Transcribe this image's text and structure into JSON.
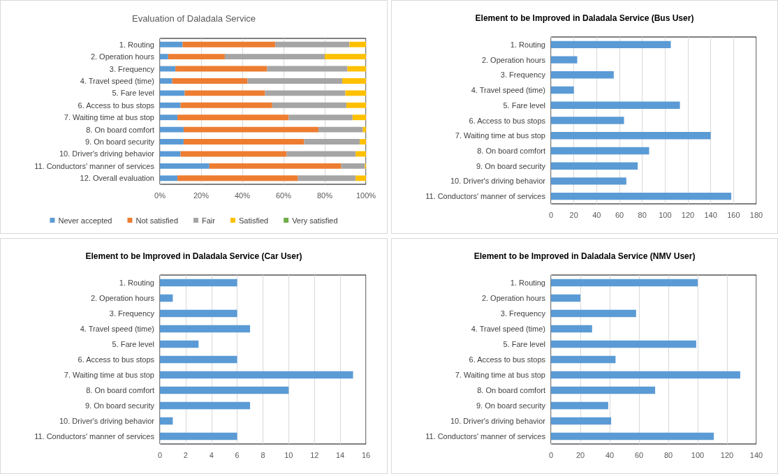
{
  "chart_data": [
    {
      "type": "bar",
      "title": "Evaluation of Daladala Service",
      "orientation": "horizontal",
      "stacked": true,
      "legend": "bottom",
      "grid": "x",
      "categories": [
        "1. Routing",
        "2. Operation hours",
        "3. Frequency",
        "4. Travel speed (time)",
        "5. Fare level",
        "6. Access to bus stops",
        "7. Waiting time at bus stop",
        "8. On board comfort",
        "9. On board security",
        "10. Driver's driving behavior",
        "11. Conductors' manner of services",
        "12. Overall evaluation"
      ],
      "series": [
        {
          "name": "Never accepted",
          "color": "#5b9bd5",
          "values": [
            11,
            4,
            7.5,
            6,
            12,
            10,
            8.5,
            11.5,
            11.5,
            10,
            24,
            8.5
          ]
        },
        {
          "name": "Not satisfied",
          "color": "#ed7d31",
          "values": [
            45,
            27.5,
            44.5,
            36.5,
            39,
            44.5,
            54,
            65.5,
            58.5,
            51.5,
            64,
            58.5
          ]
        },
        {
          "name": "Fair",
          "color": "#a5a5a5",
          "values": [
            36,
            48.5,
            39,
            46,
            39,
            36,
            31,
            21.5,
            27,
            33.5,
            11.5,
            28
          ]
        },
        {
          "name": "Satisfied",
          "color": "#ffc000",
          "values": [
            8,
            20,
            9,
            11.5,
            10,
            9.5,
            6.5,
            1.5,
            3,
            5,
            0.5,
            5
          ]
        },
        {
          "name": "Very satisfied",
          "color": "#70ad47",
          "values": [
            0,
            0,
            0,
            0,
            0,
            0,
            0,
            0,
            0,
            0,
            0,
            0
          ]
        }
      ],
      "xlim": [
        0,
        100
      ],
      "xticks": [
        {
          "value": 0,
          "label": "0%"
        },
        {
          "value": 20,
          "label": "20%"
        },
        {
          "value": 40,
          "label": "40%"
        },
        {
          "value": 60,
          "label": "60%"
        },
        {
          "value": 80,
          "label": "80%"
        },
        {
          "value": 100,
          "label": "100%"
        }
      ]
    },
    {
      "type": "bar",
      "title": "Element to be Improved in Daladala Service (Bus User)",
      "orientation": "horizontal",
      "grid": "x",
      "categories": [
        "1. Routing",
        "2. Operation hours",
        "3. Frequency",
        "4. Travel speed (time)",
        "5. Fare level",
        "6. Access to bus stops",
        "7. Waiting time at bus stop",
        "8. On board comfort",
        "9. On board security",
        "10. Driver's driving behavior",
        "11. Conductors' manner of services"
      ],
      "values": [
        105,
        23,
        55,
        20,
        113,
        64,
        140,
        86,
        76,
        66,
        158
      ],
      "color": "#5b9bd5",
      "xlim": [
        0,
        180
      ],
      "xticks": [
        0,
        20,
        40,
        60,
        80,
        100,
        120,
        140,
        160,
        180
      ]
    },
    {
      "type": "bar",
      "title": "Element to be Improved in Daladala Service (Car User)",
      "orientation": "horizontal",
      "grid": "x",
      "categories": [
        "1. Routing",
        "2. Operation hours",
        "3. Frequency",
        "4. Travel speed (time)",
        "5. Fare level",
        "6. Access to bus stops",
        "7. Waiting time at bus stop",
        "8. On board comfort",
        "9. On board security",
        "10. Driver's driving behavior",
        "11. Conductors' manner of services"
      ],
      "values": [
        6,
        1,
        6,
        7,
        3,
        6,
        15,
        10,
        7,
        1,
        6
      ],
      "color": "#5b9bd5",
      "xlim": [
        0,
        16
      ],
      "xticks": [
        0,
        2,
        4,
        6,
        8,
        10,
        12,
        14,
        16
      ]
    },
    {
      "type": "bar",
      "title": "Element to be Improved in Daladala Service (NMV User)",
      "orientation": "horizontal",
      "grid": "x",
      "categories": [
        "1. Routing",
        "2. Operation hours",
        "3. Frequency",
        "4. Travel speed (time)",
        "5. Fare level",
        "6. Access to bus stops",
        "7. Waiting time at bus stop",
        "8. On board comfort",
        "9. On board security",
        "10. Driver's driving behavior",
        "11. Conductors' manner of services"
      ],
      "values": [
        100,
        20,
        58,
        28,
        99,
        44,
        129,
        71,
        39,
        41,
        111
      ],
      "color": "#5b9bd5",
      "xlim": [
        0,
        140
      ],
      "xticks": [
        0,
        20,
        40,
        60,
        80,
        100,
        120,
        140
      ]
    }
  ]
}
